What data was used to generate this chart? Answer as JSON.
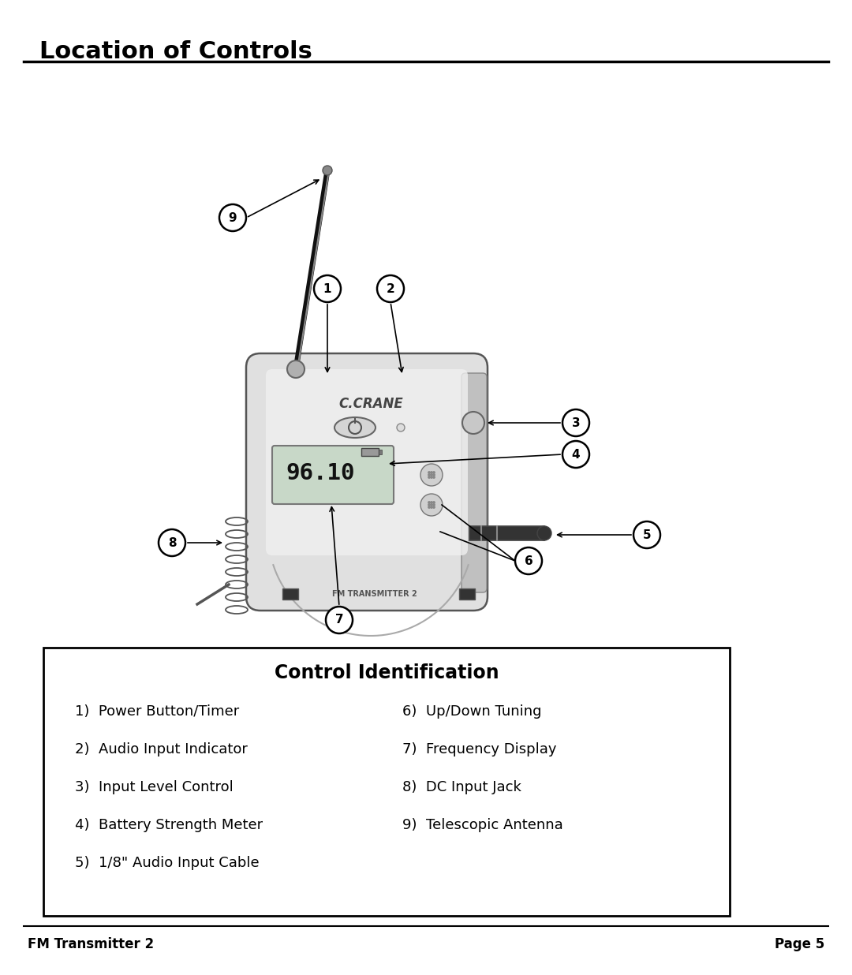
{
  "title": "Location of Controls",
  "bg_color": "#ffffff",
  "title_font_size": 22,
  "title_font_weight": "bold",
  "footer_left": "FM Transmitter 2",
  "footer_right": "Page 5",
  "box_title": "Control Identification",
  "controls_left": [
    "1)  Power Button/Timer",
    "2)  Audio Input Indicator",
    "3)  Input Level Control",
    "4)  Battery Strength Meter",
    "5)  1/8\" Audio Input Cable"
  ],
  "controls_right": [
    "6)  Up/Down Tuning",
    "7)  Frequency Display",
    "8)  DC Input Jack",
    "9)  Telescopic Antenna"
  ]
}
